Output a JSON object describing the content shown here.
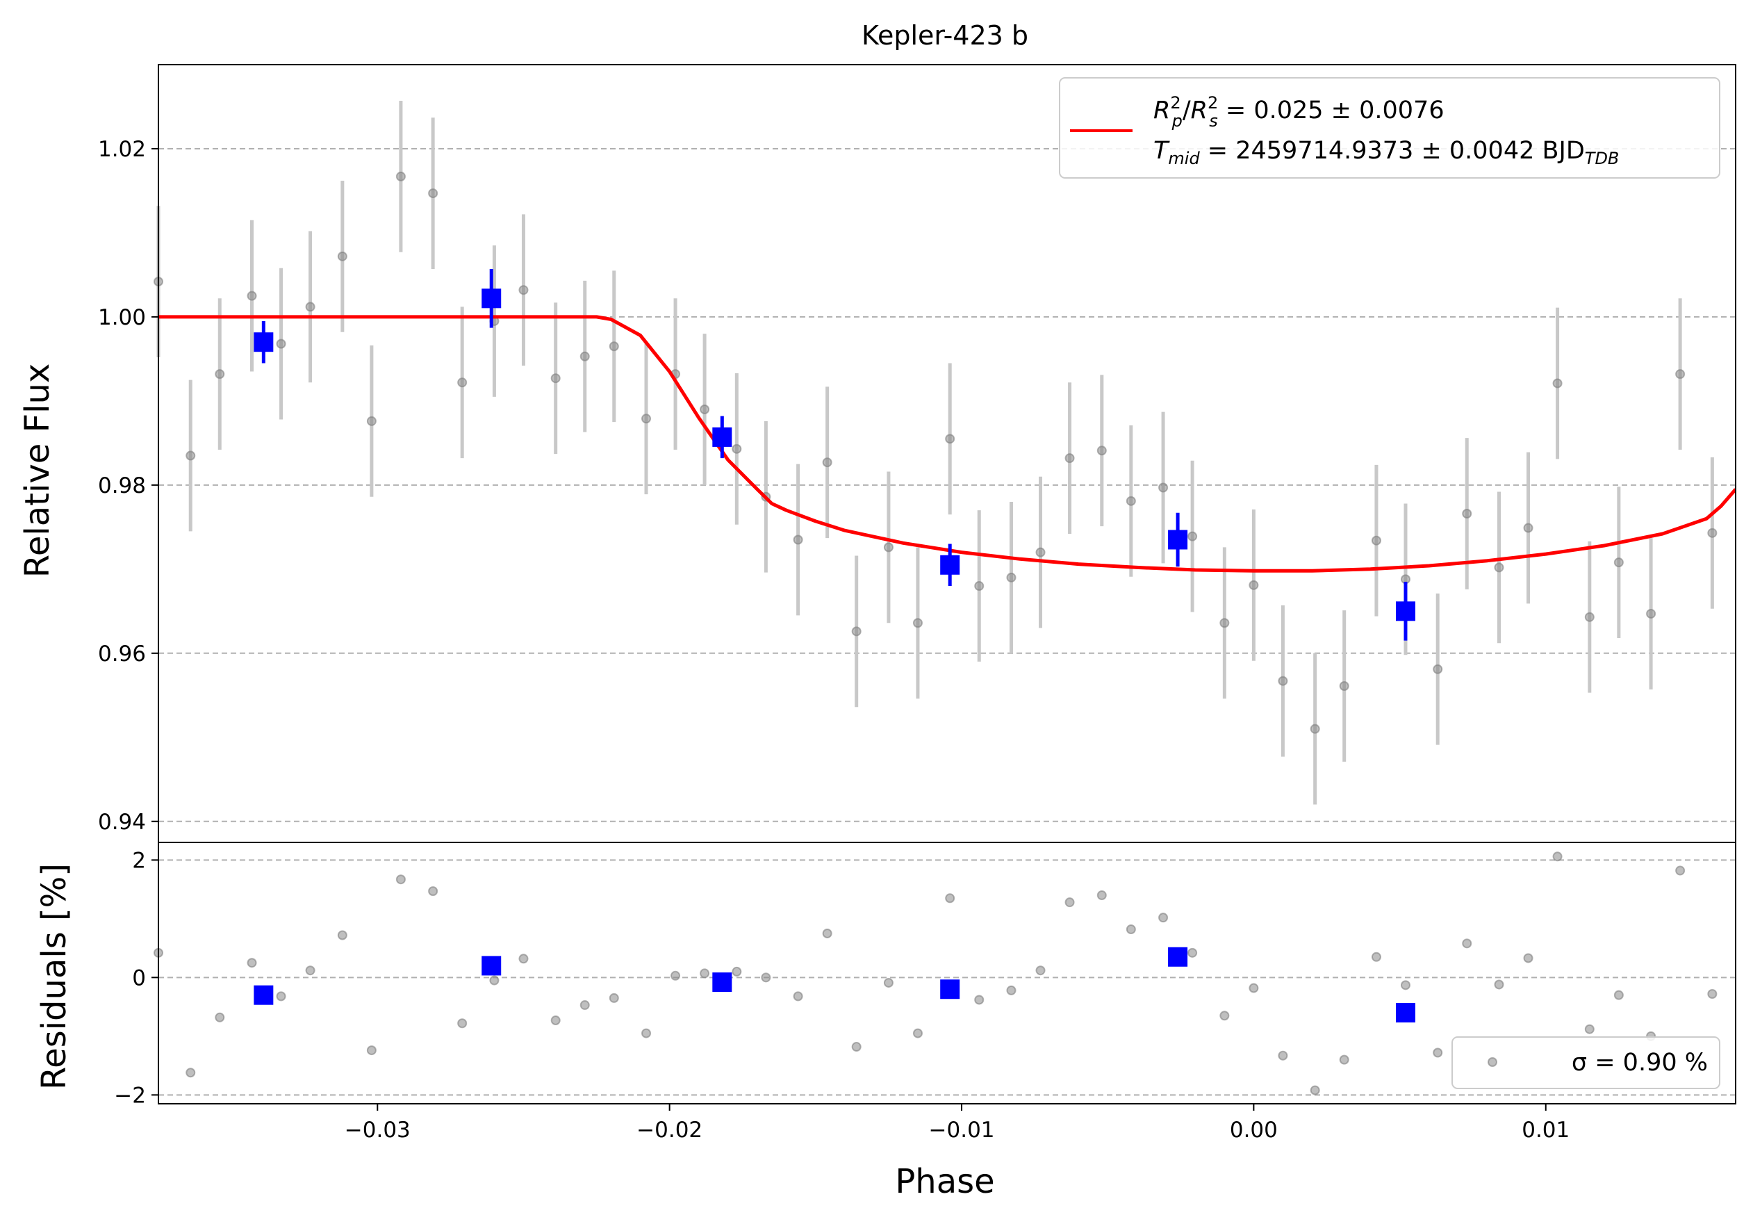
{
  "chart_data": {
    "type": "scatter",
    "title": "Kepler-423 b",
    "xlabel": "Phase",
    "ylabel_top": "Relative Flux",
    "ylabel_bottom": "Residuals [%]",
    "xlim": [
      -0.0375,
      0.0165
    ],
    "ylim_top": [
      0.9375,
      1.03
    ],
    "ylim_bottom": [
      -2.15,
      2.3
    ],
    "x_ticks": [
      -0.03,
      -0.02,
      -0.01,
      0.0,
      0.01
    ],
    "x_tick_labels": [
      "−0.03",
      "−0.02",
      "−0.01",
      "0.00",
      "0.01"
    ],
    "y_ticks_top": [
      0.94,
      0.96,
      0.98,
      1.0,
      1.02
    ],
    "y_tick_labels_top": [
      "0.94",
      "0.96",
      "0.98",
      "1.00",
      "1.02"
    ],
    "y_ticks_bottom": [
      -2,
      0,
      2
    ],
    "y_tick_labels_bottom": [
      "−2",
      "0",
      "2"
    ],
    "grid": "horizontal dashed",
    "legend_top": {
      "placement": "top-right",
      "line1_pre": "R",
      "line1_rest": " = 0.025 ± 0.0076",
      "line2_pre": "T",
      "line2_sub": "mid",
      "line2_rest": " = 2459714.9373 ± 0.0042 BJD",
      "line2_sub2": "TDB"
    },
    "legend_bottom": {
      "placement": "bottom-right",
      "label": "σ = 0.90 %"
    },
    "colors": {
      "model": "#ff0000",
      "binned": "#0000ff",
      "raw": "#808080",
      "errorbar_raw": "#c8c8c8",
      "grid": "#b0b0b0"
    },
    "raw_points": {
      "x": [
        -0.0375,
        -0.0364,
        -0.0354,
        -0.0343,
        -0.0333,
        -0.0323,
        -0.0312,
        -0.0302,
        -0.0292,
        -0.0281,
        -0.0271,
        -0.026,
        -0.025,
        -0.0239,
        -0.0229,
        -0.0219,
        -0.0208,
        -0.0198,
        -0.0188,
        -0.0177,
        -0.0167,
        -0.0156,
        -0.0146,
        -0.0136,
        -0.0125,
        -0.0115,
        -0.0104,
        -0.0094,
        -0.0083,
        -0.0073,
        -0.0063,
        -0.0052,
        -0.0042,
        -0.0031,
        -0.0021,
        -0.001,
        0.0,
        0.001,
        0.0021,
        0.0031,
        0.0042,
        0.0052,
        0.0063,
        0.0073,
        0.0084,
        0.0094,
        0.0104,
        0.0115,
        0.0125,
        0.0136,
        0.0146,
        0.0157
      ],
      "y": [
        1.0042,
        0.9835,
        0.9932,
        1.0025,
        0.9968,
        1.0012,
        1.0072,
        0.9876,
        1.0167,
        1.0147,
        0.9922,
        0.9995,
        1.0032,
        0.9927,
        0.9953,
        0.9965,
        0.9879,
        0.9932,
        0.989,
        0.9843,
        0.9786,
        0.9735,
        0.9827,
        0.9626,
        0.9726,
        0.9636,
        0.9855,
        0.968,
        0.969,
        0.972,
        0.9832,
        0.9841,
        0.9781,
        0.9797,
        0.9739,
        0.9636,
        0.9681,
        0.9567,
        0.951,
        0.9561,
        0.9734,
        0.9688,
        0.9581,
        0.9766,
        0.9702,
        0.9749,
        0.9921,
        0.9643,
        0.9708,
        0.9647,
        0.9932,
        0.9743
      ],
      "yerr": 0.009
    },
    "binned_points": {
      "x": [
        -0.0339,
        -0.0261,
        -0.0182,
        -0.0104,
        -0.0026,
        0.0052
      ],
      "y": [
        0.997,
        1.0022,
        0.9857,
        0.9705,
        0.9735,
        0.965
      ],
      "yerr": [
        0.0025,
        0.0035,
        0.0025,
        0.0025,
        0.0032,
        0.0035
      ]
    },
    "model": {
      "name": "transit model",
      "x": [
        -0.0375,
        -0.0225,
        -0.022,
        -0.021,
        -0.02,
        -0.019,
        -0.018,
        -0.017,
        -0.0165,
        -0.016,
        -0.015,
        -0.014,
        -0.012,
        -0.01,
        -0.008,
        -0.006,
        -0.004,
        -0.002,
        0.0,
        0.002,
        0.004,
        0.006,
        0.008,
        0.01,
        0.012,
        0.014,
        0.0155,
        0.016,
        0.0165
      ],
      "y": [
        1.0,
        1.0,
        0.9997,
        0.9978,
        0.9935,
        0.988,
        0.983,
        0.9795,
        0.9778,
        0.977,
        0.9757,
        0.9746,
        0.9731,
        0.972,
        0.9712,
        0.9706,
        0.9702,
        0.9699,
        0.9698,
        0.9698,
        0.97,
        0.9704,
        0.971,
        0.9718,
        0.9728,
        0.9742,
        0.976,
        0.9775,
        0.9795
      ]
    },
    "residual_raw": {
      "x": [
        -0.0375,
        -0.0364,
        -0.0354,
        -0.0343,
        -0.0333,
        -0.0323,
        -0.0312,
        -0.0302,
        -0.0292,
        -0.0281,
        -0.0271,
        -0.026,
        -0.025,
        -0.0239,
        -0.0229,
        -0.0219,
        -0.0208,
        -0.0198,
        -0.0188,
        -0.0177,
        -0.0167,
        -0.0156,
        -0.0146,
        -0.0136,
        -0.0125,
        -0.0115,
        -0.0104,
        -0.0094,
        -0.0083,
        -0.0073,
        -0.0063,
        -0.0052,
        -0.0042,
        -0.0031,
        -0.0021,
        -0.001,
        0.0,
        0.001,
        0.0021,
        0.0031,
        0.0042,
        0.0052,
        0.0063,
        0.0073,
        0.0084,
        0.0094,
        0.0104,
        0.0115,
        0.0125,
        0.0136,
        0.0146,
        0.0157
      ],
      "y": [
        0.42,
        -1.62,
        -0.68,
        0.25,
        -0.32,
        0.12,
        0.72,
        -1.24,
        1.67,
        1.47,
        -0.78,
        -0.05,
        0.32,
        -0.73,
        -0.47,
        -0.35,
        -0.95,
        0.03,
        0.07,
        0.1,
        0.0,
        -0.32,
        0.75,
        -1.18,
        -0.09,
        -0.95,
        1.35,
        -0.38,
        -0.22,
        0.12,
        1.28,
        1.4,
        0.82,
        1.02,
        0.42,
        -0.65,
        -0.18,
        -1.33,
        -1.92,
        -1.4,
        0.35,
        -0.13,
        -1.28,
        0.58,
        -0.12,
        0.33,
        2.06,
        -0.88,
        -0.3,
        -1.0,
        1.82,
        -0.28
      ]
    },
    "residual_binned": {
      "x": [
        -0.0339,
        -0.0261,
        -0.0182,
        -0.0104,
        -0.0026,
        0.0052
      ],
      "y": [
        -0.3,
        0.2,
        -0.08,
        -0.2,
        0.35,
        -0.6
      ]
    }
  }
}
